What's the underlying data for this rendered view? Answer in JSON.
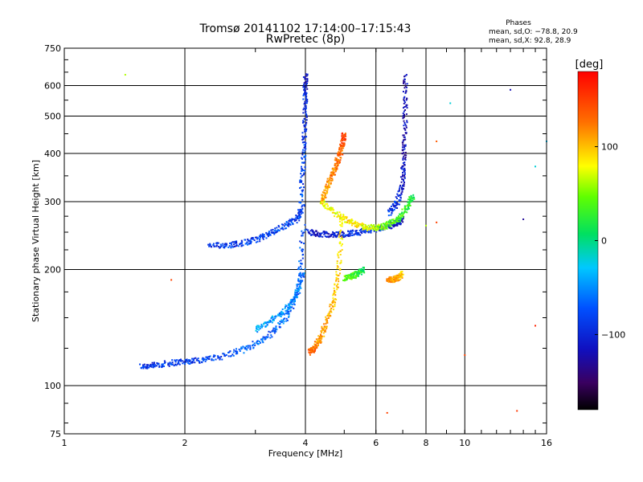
{
  "chart_data": {
    "type": "scatter",
    "title": "Tromsø 20141102 17:14:00–17:15:43",
    "subtitle": "RwPretec (8p)",
    "xlabel": "Frequency [MHz]",
    "ylabel": "Stationary phase Virtual Height [km]",
    "xscale": "log",
    "yscale": "log",
    "xlim": [
      1,
      16
    ],
    "ylim": [
      75,
      750
    ],
    "x_ticks": [
      1,
      2,
      4,
      6,
      8,
      10,
      16
    ],
    "x_ticklabels": [
      "1",
      "2",
      "4",
      "6",
      "8",
      "10",
      "16"
    ],
    "y_ticks": [
      75,
      100,
      200,
      300,
      400,
      500,
      600,
      750
    ],
    "y_ticklabels": [
      "75",
      "100",
      "200",
      "300",
      "400",
      "500",
      "600",
      "750"
    ],
    "grid": true,
    "phases_info": {
      "title": "Phases",
      "line1": "mean, sd,O: −78.8, 20.9",
      "line2": "mean, sd,X:  92.8, 28.9"
    },
    "colorbar": {
      "label": "[deg]",
      "range": [
        -180,
        180
      ],
      "ticks": [
        100,
        0,
        -100
      ],
      "ticklabels": [
        "100",
        "0",
        "−100"
      ]
    },
    "traces": [
      {
        "x": [
          1.55,
          1.7,
          1.9,
          2.1,
          2.4,
          2.8,
          3.2,
          3.6,
          3.85,
          3.95
        ],
        "y": [
          112,
          113,
          115,
          116,
          118,
          124,
          133,
          150,
          178,
          260
        ],
        "phase": [
          -95,
          -95,
          -92,
          -90,
          -85,
          -80,
          -75,
          -70,
          -75,
          -80
        ]
      },
      {
        "x": [
          2.3,
          2.6,
          2.9,
          3.2,
          3.5,
          3.8,
          3.95
        ],
        "y": [
          230,
          232,
          236,
          245,
          258,
          270,
          290
        ],
        "phase": [
          -95,
          -92,
          -90,
          -90,
          -85,
          -90,
          -90
        ]
      },
      {
        "x": [
          3.0,
          3.3,
          3.6,
          3.8,
          3.95
        ],
        "y": [
          140,
          148,
          158,
          172,
          200
        ],
        "phase": [
          -50,
          -55,
          -60,
          -65,
          -70
        ]
      },
      {
        "x": [
          3.9,
          3.95,
          3.98,
          4.0,
          4.0
        ],
        "y": [
          300,
          380,
          460,
          560,
          640
        ],
        "phase": [
          -85,
          -90,
          -95,
          -100,
          -110
        ]
      },
      {
        "x": [
          4.05,
          4.4,
          4.8,
          5.2,
          5.7,
          6.2,
          6.7,
          7.0
        ],
        "y": [
          250,
          247,
          246,
          248,
          252,
          257,
          262,
          270
        ],
        "phase": [
          -110,
          -110,
          -105,
          -100,
          -95,
          -90,
          -110,
          -115
        ]
      },
      {
        "x": [
          4.1,
          4.2,
          4.35,
          4.5,
          4.7,
          4.85,
          4.95
        ],
        "y": [
          122,
          125,
          132,
          145,
          165,
          200,
          280
        ],
        "phase": [
          140,
          130,
          120,
          110,
          100,
          95,
          90
        ]
      },
      {
        "x": [
          4.4,
          4.55,
          4.7,
          4.85,
          4.95,
          5.0
        ],
        "y": [
          300,
          330,
          360,
          390,
          420,
          450
        ],
        "phase": [
          110,
          115,
          125,
          130,
          140,
          150
        ]
      },
      {
        "x": [
          4.4,
          4.8,
          5.2,
          5.6,
          6.0,
          6.4,
          6.8,
          7.2,
          7.4
        ],
        "y": [
          300,
          278,
          265,
          258,
          256,
          260,
          270,
          290,
          310
        ],
        "phase": [
          70,
          80,
          90,
          80,
          60,
          40,
          30,
          20,
          10
        ]
      },
      {
        "x": [
          6.5,
          6.8,
          7.0,
          7.05,
          7.1,
          7.1
        ],
        "y": [
          280,
          300,
          340,
          400,
          500,
          640
        ],
        "phase": [
          -90,
          -100,
          -110,
          -120,
          -120,
          -120
        ]
      },
      {
        "x": [
          6.4,
          6.6,
          6.8,
          7.0
        ],
        "y": [
          190,
          188,
          190,
          196
        ],
        "phase": [
          130,
          120,
          110,
          100
        ]
      },
      {
        "x": [
          5.0,
          5.2,
          5.4,
          5.6
        ],
        "y": [
          190,
          192,
          195,
          200
        ],
        "phase": [
          40,
          30,
          20,
          10
        ]
      }
    ],
    "scatter_points": [
      {
        "x": 1.42,
        "y": 640,
        "phase": 60
      },
      {
        "x": 1.85,
        "y": 188,
        "phase": 150
      },
      {
        "x": 13.0,
        "y": 585,
        "phase": -120
      },
      {
        "x": 14.0,
        "y": 270,
        "phase": -130
      },
      {
        "x": 15.0,
        "y": 370,
        "phase": -30
      },
      {
        "x": 8.5,
        "y": 430,
        "phase": 140
      },
      {
        "x": 9.2,
        "y": 540,
        "phase": -30
      },
      {
        "x": 10.0,
        "y": 120,
        "phase": 150
      },
      {
        "x": 13.5,
        "y": 86,
        "phase": 155
      },
      {
        "x": 15.0,
        "y": 143,
        "phase": 165
      },
      {
        "x": 6.4,
        "y": 85,
        "phase": 150
      },
      {
        "x": 16.0,
        "y": 430,
        "phase": -40
      },
      {
        "x": 8.0,
        "y": 260,
        "phase": 60
      },
      {
        "x": 8.5,
        "y": 265,
        "phase": 150
      }
    ]
  }
}
